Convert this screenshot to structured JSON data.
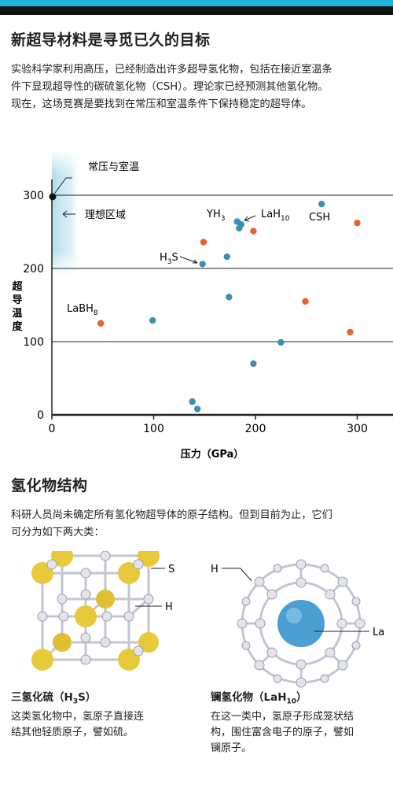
{
  "section1": {
    "title": "新超导材料是寻觅已久的目标",
    "paragraph_lines": [
      "实验科学家利用高压，已经制造出许多超导氢化物，包括在接近室温条",
      "件下显现超导性的碳硫氢化物（CSH）。理论家已经预测其他氢化物。",
      "现在，这场竞赛是要找到在常压和室温条件下保持稳定的超导体。"
    ]
  },
  "chart_data": {
    "type": "scatter",
    "xlabel": "压力（GPa）",
    "ylabel": "超导温度",
    "xlim": [
      0,
      340
    ],
    "ylim": [
      0,
      320
    ],
    "x_ticks": [
      0,
      100,
      200,
      300
    ],
    "y_ticks": [
      0,
      100,
      200,
      300
    ],
    "grid": "horizontal at 100, 200, 300",
    "colors": {
      "experimental": "#3b8fb3",
      "theoretical": "#e8632a",
      "ideal_zone": "#a9d8e8",
      "axis": "#231f20"
    },
    "series": [
      {
        "color_key": "experimental",
        "points": [
          {
            "x": 265,
            "y": 288
          },
          {
            "x": 182,
            "y": 264
          },
          {
            "x": 186,
            "y": 260
          },
          {
            "x": 184,
            "y": 255
          },
          {
            "x": 148,
            "y": 206
          },
          {
            "x": 172,
            "y": 216
          },
          {
            "x": 174,
            "y": 161
          },
          {
            "x": 99,
            "y": 129
          },
          {
            "x": 225,
            "y": 99
          },
          {
            "x": 198,
            "y": 70
          },
          {
            "x": 138,
            "y": 18
          },
          {
            "x": 143,
            "y": 8
          }
        ]
      },
      {
        "color_key": "theoretical",
        "points": [
          {
            "x": 149,
            "y": 236
          },
          {
            "x": 198,
            "y": 251
          },
          {
            "x": 300,
            "y": 262
          },
          {
            "x": 249,
            "y": 155
          },
          {
            "x": 293,
            "y": 113
          },
          {
            "x": 48,
            "y": 125
          }
        ]
      }
    ],
    "reference_point": {
      "x": 0,
      "y": 298
    },
    "annotations": [
      {
        "label": "常压与室温",
        "target_x": 0,
        "target_y": 298
      },
      {
        "label": "理想区域"
      },
      {
        "label": "YH",
        "sub": "3"
      },
      {
        "label": "LaH",
        "sub": "10"
      },
      {
        "label": "CSH"
      },
      {
        "label": "H",
        "sub": "3",
        "suffix": "S"
      },
      {
        "label": "LaBH",
        "sub": "8"
      }
    ]
  },
  "section2": {
    "title": "氢化物结构",
    "paragraph_lines": [
      "科研人员尚未确定所有氢化物超导体的原子结构。但到目前为止，它们",
      "可分为如下两大类："
    ]
  },
  "structures": [
    {
      "diagram_labels": [
        "S",
        "H"
      ],
      "title": "三氢化硫（H",
      "title_sub": "3",
      "title_suffix": "S）",
      "desc_lines": [
        "这类氢化物中，氢原子直接连",
        "结其他轻质原子，譬如硫。"
      ]
    },
    {
      "diagram_labels": [
        "H",
        "La"
      ],
      "title": "镧氢化物（LaH",
      "title_sub": "10",
      "title_suffix": "）",
      "desc_lines": [
        "在这一类中，氢原子形成笼状结",
        "构，围住富含电子的原子，譬如",
        "镧原子。"
      ]
    }
  ],
  "diagram_colors": {
    "sulfur": "#e8c93a",
    "hydrogen": "#e2e4ea",
    "lanthanum": "#4a9ed0",
    "bond": "#c2c6d0"
  }
}
